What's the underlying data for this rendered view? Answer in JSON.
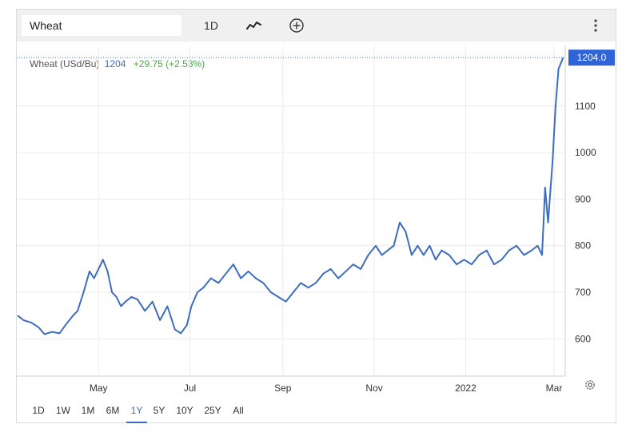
{
  "toolbar": {
    "symbol": "Wheat",
    "interval": "1D",
    "icons": [
      "line-chart-style-icon",
      "add-compare-icon",
      "more-vertical-icon"
    ]
  },
  "legend": {
    "name": "Wheat (USd/Bu)",
    "price": "1204",
    "change": "+29.75 (+2.53%)"
  },
  "price_tag": "1204.0",
  "ranges": [
    "1D",
    "1W",
    "1M",
    "6M",
    "1Y",
    "5Y",
    "10Y",
    "25Y",
    "All"
  ],
  "active_range": "1Y",
  "colors": {
    "line": "#3d6dbf",
    "tag": "#2f63d8",
    "positive": "#4fa84a"
  },
  "chart_data": {
    "type": "line",
    "xlabel": "",
    "ylabel": "",
    "ylim": [
      520,
      1230
    ],
    "y_ticks": [
      "600",
      "700",
      "800",
      "900",
      "1000",
      "1100"
    ],
    "x_ticks": [
      "May",
      "Jul",
      "Sep",
      "Nov",
      "2022",
      "Mar"
    ],
    "x_tick_dates": [
      "2021-05-01",
      "2021-07-01",
      "2021-09-01",
      "2021-11-01",
      "2022-01-01",
      "2022-03-01"
    ],
    "last_value": 1204.0,
    "grid": true,
    "series": [
      {
        "x": [
          "2021-03-08",
          "2021-03-12",
          "2021-03-17",
          "2021-03-22",
          "2021-03-26",
          "2021-03-31",
          "2021-04-05",
          "2021-04-09",
          "2021-04-14",
          "2021-04-17",
          "2021-04-21",
          "2021-04-25",
          "2021-04-28",
          "2021-05-01",
          "2021-05-04",
          "2021-05-07",
          "2021-05-10",
          "2021-05-13",
          "2021-05-16",
          "2021-05-19",
          "2021-05-23",
          "2021-05-27",
          "2021-06-01",
          "2021-06-06",
          "2021-06-11",
          "2021-06-16",
          "2021-06-21",
          "2021-06-25",
          "2021-06-29",
          "2021-07-02",
          "2021-07-06",
          "2021-07-10",
          "2021-07-15",
          "2021-07-20",
          "2021-07-25",
          "2021-07-30",
          "2021-08-04",
          "2021-08-09",
          "2021-08-14",
          "2021-08-19",
          "2021-08-24",
          "2021-08-29",
          "2021-09-03",
          "2021-09-08",
          "2021-09-13",
          "2021-09-18",
          "2021-09-23",
          "2021-09-28",
          "2021-10-03",
          "2021-10-08",
          "2021-10-13",
          "2021-10-18",
          "2021-10-23",
          "2021-10-28",
          "2021-11-02",
          "2021-11-06",
          "2021-11-10",
          "2021-11-14",
          "2021-11-18",
          "2021-11-22",
          "2021-11-26",
          "2021-11-30",
          "2021-12-04",
          "2021-12-08",
          "2021-12-12",
          "2021-12-16",
          "2021-12-21",
          "2021-12-26",
          "2021-12-31",
          "2022-01-05",
          "2022-01-10",
          "2022-01-15",
          "2022-01-20",
          "2022-01-25",
          "2022-01-30",
          "2022-02-04",
          "2022-02-09",
          "2022-02-14",
          "2022-02-18",
          "2022-02-21",
          "2022-02-23",
          "2022-02-25",
          "2022-02-28",
          "2022-03-02",
          "2022-03-04",
          "2022-03-07"
        ],
        "y": [
          650,
          640,
          635,
          625,
          610,
          615,
          612,
          630,
          650,
          660,
          700,
          745,
          730,
          750,
          770,
          745,
          700,
          690,
          670,
          680,
          690,
          685,
          660,
          680,
          640,
          670,
          620,
          612,
          630,
          670,
          700,
          710,
          730,
          720,
          740,
          760,
          730,
          745,
          730,
          720,
          700,
          690,
          680,
          700,
          720,
          710,
          720,
          740,
          750,
          730,
          745,
          760,
          750,
          780,
          800,
          780,
          790,
          800,
          850,
          830,
          780,
          800,
          780,
          800,
          770,
          790,
          780,
          760,
          770,
          760,
          780,
          790,
          760,
          770,
          790,
          800,
          780,
          790,
          800,
          780,
          925,
          850,
          980,
          1100,
          1180,
          1204
        ]
      }
    ]
  }
}
